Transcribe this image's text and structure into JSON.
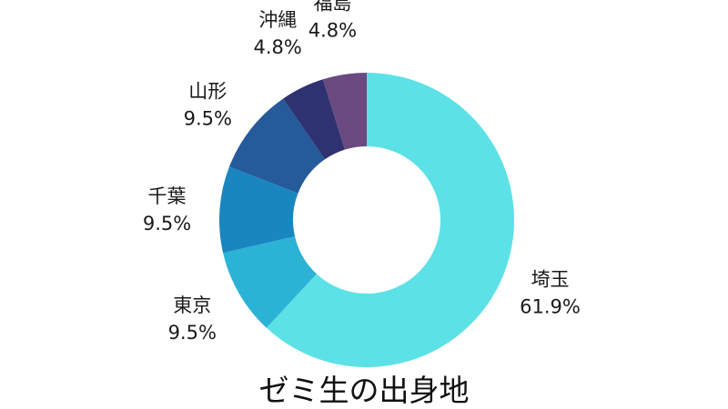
{
  "chart_data": {
    "type": "pie",
    "title": "ゼミ生の出身地",
    "donut": true,
    "categories": [
      "埼玉",
      "東京",
      "千葉",
      "山形",
      "沖縄",
      "福島"
    ],
    "values": [
      61.9,
      9.5,
      9.5,
      9.5,
      4.8,
      4.8
    ],
    "value_labels": [
      "61.9%",
      "9.5%",
      "9.5%",
      "9.5%",
      "4.8%",
      "4.8%"
    ],
    "colors": [
      "#5ce1e6",
      "#2bb3d6",
      "#1a86c0",
      "#255a9b",
      "#2e3270",
      "#6a4a80"
    ],
    "legend": "none"
  }
}
